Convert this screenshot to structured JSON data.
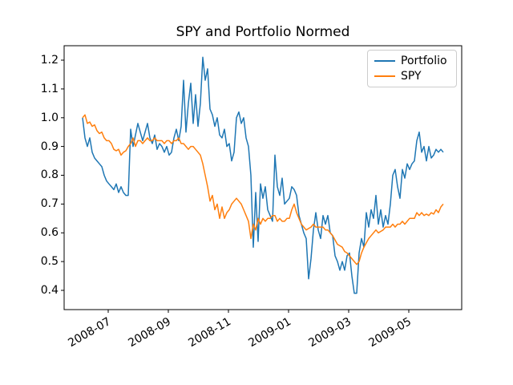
{
  "figure": {
    "background": "#ffffff",
    "spine_color": "#000000"
  },
  "chart_data": {
    "type": "line",
    "title": "SPY and Portfolio Normed",
    "xlabel": "",
    "ylabel": "",
    "grid": false,
    "legend": {
      "position": "upper right",
      "entries": [
        {
          "label": "Portfolio",
          "color": "#1f77b4"
        },
        {
          "label": "SPY",
          "color": "#ff7f0e"
        }
      ]
    },
    "x_start_date": "2008-06-05",
    "x_end_date": "2009-06-05",
    "x_tick_labels": [
      "2008-07",
      "2008-09",
      "2008-11",
      "2009-01",
      "2009-03",
      "2009-05"
    ],
    "y_ticks": [
      1.2,
      1.1,
      1.0,
      0.9,
      0.8,
      0.7,
      0.6,
      0.5,
      0.4
    ],
    "y_tick_labels": [
      "1.2",
      "1.1",
      "1.0",
      "0.9",
      "0.8",
      "0.7",
      "0.6",
      "0.5",
      "0.4"
    ],
    "ylim": [
      0.33,
      1.25
    ],
    "series": [
      {
        "name": "Portfolio",
        "color": "#1f77b4",
        "values": [
          1.0,
          0.93,
          0.9,
          0.93,
          0.88,
          0.86,
          0.85,
          0.84,
          0.83,
          0.8,
          0.78,
          0.77,
          0.76,
          0.75,
          0.77,
          0.74,
          0.76,
          0.74,
          0.73,
          0.73,
          0.96,
          0.9,
          0.94,
          0.98,
          0.95,
          0.92,
          0.95,
          0.98,
          0.93,
          0.91,
          0.94,
          0.89,
          0.91,
          0.9,
          0.88,
          0.9,
          0.87,
          0.88,
          0.93,
          0.96,
          0.92,
          0.97,
          1.13,
          0.95,
          1.05,
          1.12,
          0.98,
          1.08,
          0.97,
          1.05,
          1.21,
          1.13,
          1.17,
          1.03,
          1.01,
          0.97,
          1.0,
          0.94,
          0.93,
          0.96,
          0.9,
          0.91,
          0.85,
          0.88,
          1.0,
          1.02,
          0.98,
          1.0,
          0.93,
          0.9,
          0.8,
          0.55,
          0.74,
          0.57,
          0.77,
          0.72,
          0.76,
          0.68,
          0.66,
          0.64,
          0.87,
          0.76,
          0.73,
          0.79,
          0.7,
          0.71,
          0.72,
          0.76,
          0.75,
          0.73,
          0.66,
          0.63,
          0.6,
          0.58,
          0.44,
          0.51,
          0.61,
          0.67,
          0.61,
          0.58,
          0.66,
          0.63,
          0.66,
          0.6,
          0.59,
          0.52,
          0.5,
          0.47,
          0.5,
          0.47,
          0.52,
          0.53,
          0.45,
          0.39,
          0.39,
          0.53,
          0.58,
          0.55,
          0.67,
          0.62,
          0.68,
          0.65,
          0.73,
          0.63,
          0.68,
          0.62,
          0.66,
          0.63,
          0.7,
          0.8,
          0.82,
          0.76,
          0.72,
          0.82,
          0.79,
          0.84,
          0.82,
          0.84,
          0.85,
          0.92,
          0.95,
          0.88,
          0.9,
          0.85,
          0.9,
          0.86,
          0.87,
          0.89,
          0.88,
          0.89,
          0.88
        ]
      },
      {
        "name": "SPY",
        "color": "#ff7f0e",
        "values": [
          1.0,
          1.01,
          0.98,
          0.985,
          0.97,
          0.975,
          0.955,
          0.945,
          0.95,
          0.93,
          0.92,
          0.92,
          0.91,
          0.89,
          0.885,
          0.89,
          0.87,
          0.88,
          0.885,
          0.9,
          0.91,
          0.93,
          0.9,
          0.92,
          0.92,
          0.91,
          0.92,
          0.93,
          0.92,
          0.92,
          0.93,
          0.92,
          0.92,
          0.92,
          0.91,
          0.92,
          0.92,
          0.91,
          0.92,
          0.92,
          0.93,
          0.91,
          0.91,
          0.9,
          0.89,
          0.9,
          0.9,
          0.89,
          0.88,
          0.87,
          0.84,
          0.8,
          0.76,
          0.71,
          0.73,
          0.68,
          0.7,
          0.65,
          0.69,
          0.65,
          0.67,
          0.68,
          0.7,
          0.71,
          0.72,
          0.71,
          0.7,
          0.68,
          0.66,
          0.64,
          0.58,
          0.63,
          0.61,
          0.65,
          0.63,
          0.65,
          0.64,
          0.65,
          0.65,
          0.66,
          0.66,
          0.64,
          0.65,
          0.64,
          0.64,
          0.65,
          0.65,
          0.68,
          0.7,
          0.67,
          0.65,
          0.63,
          0.62,
          0.61,
          0.615,
          0.62,
          0.63,
          0.62,
          0.62,
          0.62,
          0.62,
          0.61,
          0.61,
          0.6,
          0.59,
          0.575,
          0.56,
          0.555,
          0.55,
          0.535,
          0.53,
          0.52,
          0.51,
          0.5,
          0.49,
          0.5,
          0.53,
          0.55,
          0.565,
          0.58,
          0.59,
          0.6,
          0.61,
          0.6,
          0.605,
          0.61,
          0.62,
          0.62,
          0.62,
          0.63,
          0.62,
          0.63,
          0.63,
          0.64,
          0.63,
          0.64,
          0.65,
          0.65,
          0.65,
          0.67,
          0.66,
          0.67,
          0.66,
          0.665,
          0.66,
          0.67,
          0.665,
          0.68,
          0.67,
          0.69,
          0.7
        ]
      }
    ]
  }
}
